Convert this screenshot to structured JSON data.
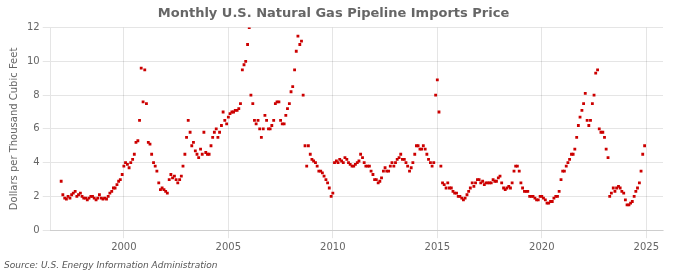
{
  "chart_data": {
    "type": "scatter",
    "title": "Monthly U.S. Natural Gas Pipeline Imports Price",
    "y_label": "Dollars per Thousand Cubic Feet",
    "annotations": [
      "Source: U.S. Energy Information Administration"
    ],
    "color": "#cc0000",
    "marker": "square",
    "grid": true,
    "xlim": [
      1996.5,
      2025.8
    ],
    "xticks": [
      2000,
      2005,
      2010,
      2015,
      2020,
      2025
    ],
    "ylim": [
      0,
      12
    ],
    "yticks": [
      0,
      2,
      4,
      6,
      8,
      10,
      12
    ],
    "x": [
      1997.0,
      1997.08,
      1997.17,
      1997.25,
      1997.33,
      1997.42,
      1997.5,
      1997.58,
      1997.67,
      1997.75,
      1997.83,
      1997.92,
      1998.0,
      1998.08,
      1998.17,
      1998.25,
      1998.33,
      1998.42,
      1998.5,
      1998.58,
      1998.67,
      1998.75,
      1998.83,
      1998.92,
      1999.0,
      1999.08,
      1999.17,
      1999.25,
      1999.33,
      1999.42,
      1999.5,
      1999.58,
      1999.67,
      1999.75,
      1999.83,
      1999.92,
      2000.0,
      2000.08,
      2000.17,
      2000.25,
      2000.33,
      2000.42,
      2000.5,
      2000.58,
      2000.67,
      2000.75,
      2000.83,
      2000.92,
      2001.0,
      2001.08,
      2001.17,
      2001.25,
      2001.33,
      2001.42,
      2001.5,
      2001.58,
      2001.67,
      2001.75,
      2001.83,
      2001.92,
      2002.0,
      2002.08,
      2002.17,
      2002.25,
      2002.33,
      2002.42,
      2002.5,
      2002.58,
      2002.67,
      2002.75,
      2002.83,
      2002.92,
      2003.0,
      2003.08,
      2003.17,
      2003.25,
      2003.33,
      2003.42,
      2003.5,
      2003.58,
      2003.67,
      2003.75,
      2003.83,
      2003.92,
      2004.0,
      2004.08,
      2004.17,
      2004.25,
      2004.33,
      2004.42,
      2004.5,
      2004.58,
      2004.67,
      2004.75,
      2004.83,
      2004.92,
      2005.0,
      2005.08,
      2005.17,
      2005.25,
      2005.33,
      2005.42,
      2005.5,
      2005.58,
      2005.67,
      2005.75,
      2005.83,
      2005.92,
      2006.0,
      2006.08,
      2006.17,
      2006.25,
      2006.33,
      2006.42,
      2006.5,
      2006.58,
      2006.67,
      2006.75,
      2006.83,
      2006.92,
      2007.0,
      2007.08,
      2007.17,
      2007.25,
      2007.33,
      2007.42,
      2007.5,
      2007.58,
      2007.67,
      2007.75,
      2007.83,
      2007.92,
      2008.0,
      2008.08,
      2008.17,
      2008.25,
      2008.33,
      2008.42,
      2008.5,
      2008.58,
      2008.67,
      2008.75,
      2008.83,
      2008.92,
      2009.0,
      2009.08,
      2009.17,
      2009.25,
      2009.33,
      2009.42,
      2009.5,
      2009.58,
      2009.67,
      2009.75,
      2009.83,
      2009.92,
      2010.0,
      2010.08,
      2010.17,
      2010.25,
      2010.33,
      2010.42,
      2010.5,
      2010.58,
      2010.67,
      2010.75,
      2010.83,
      2010.92,
      2011.0,
      2011.08,
      2011.17,
      2011.25,
      2011.33,
      2011.42,
      2011.5,
      2011.58,
      2011.67,
      2011.75,
      2011.83,
      2011.92,
      2012.0,
      2012.08,
      2012.17,
      2012.25,
      2012.33,
      2012.42,
      2012.5,
      2012.58,
      2012.67,
      2012.75,
      2012.83,
      2012.92,
      2013.0,
      2013.08,
      2013.17,
      2013.25,
      2013.33,
      2013.42,
      2013.5,
      2013.58,
      2013.67,
      2013.75,
      2013.83,
      2013.92,
      2014.0,
      2014.08,
      2014.17,
      2014.25,
      2014.33,
      2014.42,
      2014.5,
      2014.58,
      2014.67,
      2014.75,
      2014.83,
      2014.92,
      2015.0,
      2015.08,
      2015.17,
      2015.25,
      2015.33,
      2015.42,
      2015.5,
      2015.58,
      2015.67,
      2015.75,
      2015.83,
      2015.92,
      2016.0,
      2016.08,
      2016.17,
      2016.25,
      2016.33,
      2016.42,
      2016.5,
      2016.58,
      2016.67,
      2016.75,
      2016.83,
      2016.92,
      2017.0,
      2017.08,
      2017.17,
      2017.25,
      2017.33,
      2017.42,
      2017.5,
      2017.58,
      2017.67,
      2017.75,
      2017.83,
      2017.92,
      2018.0,
      2018.08,
      2018.17,
      2018.25,
      2018.33,
      2018.42,
      2018.5,
      2018.58,
      2018.67,
      2018.75,
      2018.83,
      2018.92,
      2019.0,
      2019.08,
      2019.17,
      2019.25,
      2019.33,
      2019.42,
      2019.5,
      2019.58,
      2019.67,
      2019.75,
      2019.83,
      2019.92,
      2020.0,
      2020.08,
      2020.17,
      2020.25,
      2020.33,
      2020.42,
      2020.5,
      2020.58,
      2020.67,
      2020.75,
      2020.83,
      2020.92,
      2021.0,
      2021.08,
      2021.17,
      2021.25,
      2021.33,
      2021.42,
      2021.5,
      2021.58,
      2021.67,
      2021.75,
      2021.83,
      2021.92,
      2022.0,
      2022.08,
      2022.17,
      2022.25,
      2022.33,
      2022.42,
      2022.5,
      2022.58,
      2022.67,
      2022.75,
      2022.83,
      2022.92,
      2023.0,
      2023.08,
      2023.17,
      2023.25,
      2023.33,
      2023.42,
      2023.5,
      2023.58,
      2023.67,
      2023.75,
      2023.83,
      2023.92,
      2024.0,
      2024.08,
      2024.17,
      2024.25,
      2024.33,
      2024.42,
      2024.5,
      2024.58,
      2024.67,
      2024.75,
      2024.83,
      2024.92
    ],
    "values": [
      2.9,
      2.1,
      1.9,
      1.85,
      2.0,
      1.9,
      2.1,
      2.2,
      2.3,
      2.0,
      2.1,
      2.2,
      2.0,
      1.9,
      1.9,
      1.8,
      1.9,
      2.0,
      2.0,
      1.9,
      1.8,
      1.9,
      2.1,
      1.9,
      1.85,
      1.9,
      1.85,
      2.0,
      2.2,
      2.3,
      2.5,
      2.5,
      2.7,
      2.9,
      3.0,
      3.3,
      3.8,
      4.0,
      3.9,
      3.7,
      4.0,
      4.2,
      4.5,
      5.2,
      5.3,
      6.5,
      9.6,
      7.6,
      9.5,
      7.5,
      5.2,
      5.1,
      4.5,
      4.0,
      3.8,
      3.5,
      2.8,
      2.4,
      2.5,
      2.4,
      2.3,
      2.2,
      3.0,
      3.3,
      3.1,
      3.2,
      3.0,
      2.8,
      3.0,
      3.2,
      3.8,
      4.5,
      5.5,
      6.5,
      5.8,
      5.0,
      5.2,
      4.7,
      4.5,
      4.3,
      4.8,
      4.5,
      5.8,
      4.6,
      4.5,
      4.5,
      5.0,
      5.5,
      5.8,
      6.0,
      5.5,
      5.8,
      6.2,
      7.0,
      6.5,
      6.3,
      6.7,
      6.9,
      7.0,
      7.0,
      7.1,
      7.1,
      7.2,
      7.5,
      9.5,
      9.8,
      10.0,
      11.0,
      12.0,
      8.0,
      7.5,
      6.5,
      6.3,
      6.5,
      6.0,
      5.5,
      6.0,
      6.8,
      6.5,
      6.0,
      6.0,
      6.2,
      6.5,
      7.5,
      7.6,
      7.6,
      6.5,
      6.3,
      6.3,
      6.8,
      7.2,
      7.5,
      8.2,
      8.5,
      9.5,
      10.6,
      11.5,
      11.0,
      11.2,
      8.0,
      5.0,
      3.8,
      5.0,
      4.5,
      4.2,
      4.1,
      4.0,
      3.8,
      3.5,
      3.5,
      3.4,
      3.2,
      3.0,
      2.8,
      2.5,
      2.0,
      2.2,
      4.0,
      4.1,
      4.0,
      4.2,
      4.1,
      4.0,
      4.3,
      4.2,
      4.0,
      3.9,
      3.8,
      3.8,
      3.9,
      4.0,
      4.1,
      4.5,
      4.3,
      4.0,
      3.8,
      3.8,
      3.8,
      3.5,
      3.3,
      3.0,
      3.0,
      2.8,
      2.9,
      3.1,
      3.5,
      3.7,
      3.5,
      3.5,
      3.8,
      4.0,
      3.8,
      4.0,
      4.2,
      4.3,
      4.5,
      4.2,
      4.2,
      4.0,
      3.8,
      3.5,
      3.7,
      4.0,
      4.5,
      5.0,
      5.0,
      4.8,
      4.8,
      5.0,
      4.8,
      4.5,
      4.2,
      4.0,
      3.8,
      4.0,
      8.0,
      8.9,
      7.0,
      3.8,
      2.8,
      2.7,
      2.5,
      2.8,
      2.5,
      2.5,
      2.3,
      2.2,
      2.2,
      2.0,
      2.0,
      1.9,
      1.8,
      1.9,
      2.1,
      2.3,
      2.5,
      2.8,
      2.6,
      2.8,
      3.0,
      3.0,
      2.8,
      2.9,
      2.7,
      2.8,
      2.8,
      2.8,
      2.8,
      3.0,
      2.9,
      2.9,
      3.1,
      3.2,
      2.8,
      2.5,
      2.4,
      2.5,
      2.6,
      2.5,
      2.8,
      3.5,
      3.8,
      3.8,
      3.5,
      2.8,
      2.5,
      2.3,
      2.3,
      2.3,
      2.0,
      2.0,
      2.0,
      1.9,
      1.8,
      1.8,
      2.0,
      2.0,
      1.9,
      1.8,
      1.6,
      1.6,
      1.7,
      1.7,
      1.9,
      2.0,
      2.0,
      2.3,
      3.0,
      3.5,
      3.5,
      3.8,
      4.0,
      4.2,
      4.5,
      4.5,
      4.8,
      5.5,
      6.2,
      6.7,
      7.1,
      7.5,
      8.1,
      6.5,
      6.2,
      6.5,
      7.5,
      8.0,
      9.3,
      9.5,
      6.0,
      5.8,
      5.8,
      5.5,
      4.8,
      4.3,
      2.0,
      2.2,
      2.5,
      2.3,
      2.5,
      2.6,
      2.5,
      2.3,
      2.2,
      1.8,
      1.5,
      1.5,
      1.6,
      1.7,
      2.0,
      2.3,
      2.5,
      2.8,
      3.5,
      4.5,
      5.0
    ]
  }
}
